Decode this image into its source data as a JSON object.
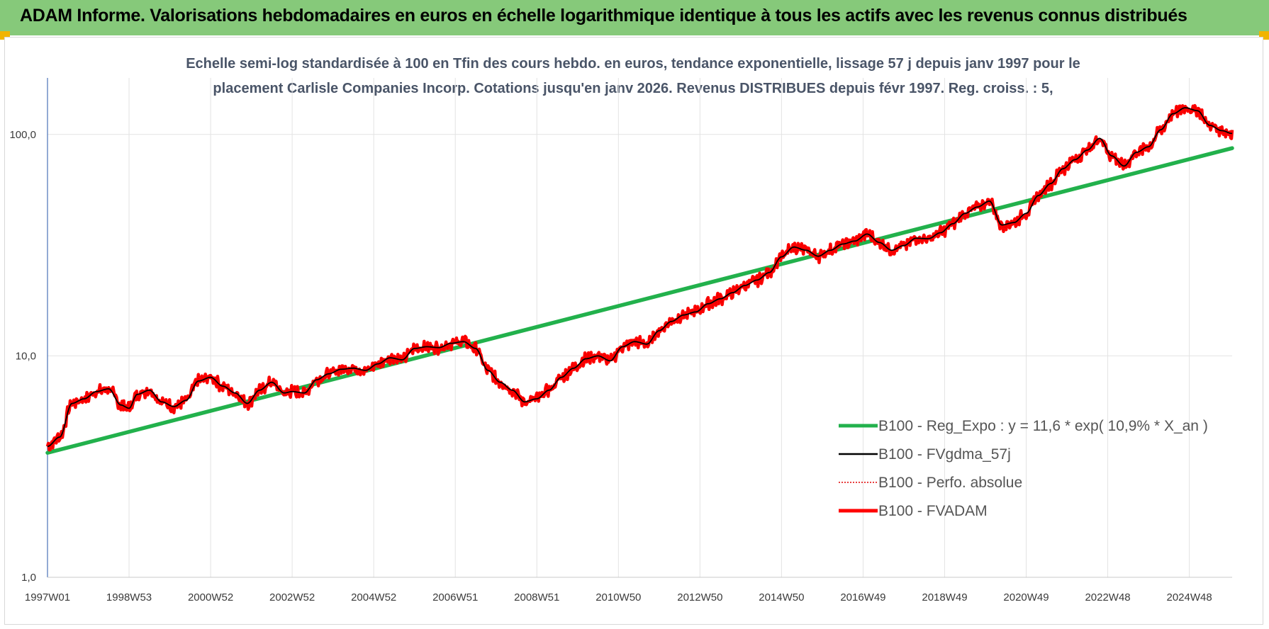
{
  "header": {
    "title": "ADAM Informe. Valorisations hebdomadaires en euros en échelle logarithmique identique à tous les actifs avec les revenus connus distribués"
  },
  "colors": {
    "banner": "#86c97a",
    "regression": "#22b14c",
    "smoothed": "#000000",
    "perf": "#e00000",
    "fvadam": "#ff0000",
    "accent": "#f0b400"
  },
  "chart_data": {
    "type": "line",
    "title_line1": "Echelle semi-log standardisée à 100 en Tfin des cours hebdo. en euros, tendance exponentielle, lissage 57 j depuis janv 1997 pour le",
    "title_line2": "placement Carlisle Companies Incorp. Cotations jusqu'en janv 2026. Revenus DISTRIBUES depuis févr 1997. Reg. croiss. : 5,",
    "y_scale": "log",
    "ylim": [
      1,
      180
    ],
    "xlim": [
      1997.0,
      2026.05
    ],
    "grid": true,
    "legend_position": "bottom-right",
    "y_ticks": [
      {
        "value": 1,
        "label": "1,0"
      },
      {
        "value": 10,
        "label": "10,0"
      },
      {
        "value": 100,
        "label": "100,0"
      }
    ],
    "x_ticks": [
      {
        "value": 1997.0,
        "label": "1997W01"
      },
      {
        "value": 1999.0,
        "label": "1998W53"
      },
      {
        "value": 2001.0,
        "label": "2000W52"
      },
      {
        "value": 2003.0,
        "label": "2002W52"
      },
      {
        "value": 2005.0,
        "label": "2004W52"
      },
      {
        "value": 2007.0,
        "label": "2006W51"
      },
      {
        "value": 2009.0,
        "label": "2008W51"
      },
      {
        "value": 2011.0,
        "label": "2010W50"
      },
      {
        "value": 2013.0,
        "label": "2012W50"
      },
      {
        "value": 2015.0,
        "label": "2014W50"
      },
      {
        "value": 2017.0,
        "label": "2016W49"
      },
      {
        "value": 2019.0,
        "label": "2018W49"
      },
      {
        "value": 2021.0,
        "label": "2020W49"
      },
      {
        "value": 2023.0,
        "label": "2022W48"
      },
      {
        "value": 2025.0,
        "label": "2024W48"
      }
    ],
    "series": [
      {
        "name": "B100 - Reg_Expo : y = 11,6 * exp( 10,9% *  X_an )",
        "style": "regression",
        "x": [
          1997.0,
          2026.05
        ],
        "values": [
          3.65,
          86.7
        ]
      },
      {
        "name": "B100 - FVgdma_57j",
        "style": "smoothed",
        "x": [
          1997.0,
          1997.3,
          1997.6,
          1997.9,
          1998.2,
          1998.5,
          1998.8,
          1999.0,
          1999.2,
          1999.5,
          1999.8,
          2000.1,
          2000.4,
          2000.7,
          2001.0,
          2001.3,
          2001.6,
          2001.9,
          2002.2,
          2002.5,
          2002.8,
          2003.0,
          2003.3,
          2003.6,
          2003.9,
          2004.2,
          2004.5,
          2004.8,
          2005.1,
          2005.4,
          2005.7,
          2006.0,
          2006.3,
          2006.6,
          2006.9,
          2007.2,
          2007.5,
          2007.8,
          2008.1,
          2008.4,
          2008.7,
          2009.0,
          2009.3,
          2009.6,
          2009.9,
          2010.2,
          2010.5,
          2010.8,
          2011.1,
          2011.4,
          2011.7,
          2012.0,
          2012.3,
          2012.6,
          2012.9,
          2013.2,
          2013.5,
          2013.8,
          2014.1,
          2014.4,
          2014.7,
          2015.0,
          2015.3,
          2015.6,
          2015.9,
          2016.2,
          2016.5,
          2016.8,
          2017.1,
          2017.4,
          2017.7,
          2018.0,
          2018.3,
          2018.6,
          2018.9,
          2019.2,
          2019.5,
          2019.8,
          2020.1,
          2020.4,
          2020.7,
          2021.0,
          2021.3,
          2021.6,
          2021.9,
          2022.2,
          2022.5,
          2022.8,
          2023.1,
          2023.4,
          2023.7,
          2024.0,
          2024.3,
          2024.6,
          2024.9,
          2025.2,
          2025.5,
          2025.8,
          2026.05
        ],
        "values": [
          3.9,
          4.3,
          6.1,
          6.4,
          6.9,
          7.1,
          6.0,
          5.8,
          6.7,
          7.0,
          6.2,
          5.9,
          6.3,
          7.7,
          8.0,
          7.3,
          6.8,
          6.1,
          7.0,
          7.6,
          6.8,
          6.9,
          6.8,
          7.8,
          8.3,
          8.7,
          8.8,
          8.6,
          9.2,
          9.8,
          9.6,
          10.8,
          11.0,
          10.9,
          11.4,
          11.6,
          10.8,
          8.6,
          7.6,
          7.0,
          6.2,
          6.4,
          7.0,
          8.0,
          8.8,
          9.7,
          10.0,
          9.5,
          11.0,
          11.6,
          11.3,
          13.0,
          14.3,
          15.3,
          15.8,
          17.2,
          18.1,
          19.3,
          20.8,
          22.0,
          23.8,
          28.0,
          31.0,
          30.0,
          28.2,
          30.0,
          32.0,
          33.0,
          35.5,
          32.5,
          30.0,
          31.5,
          34.0,
          33.8,
          36.0,
          39.5,
          44.0,
          47.0,
          50.0,
          39.0,
          40.0,
          44.0,
          53.0,
          60.0,
          70.0,
          77.0,
          85.0,
          96.0,
          80.0,
          72.0,
          83.0,
          88.0,
          105.0,
          124.0,
          132.0,
          128.0,
          110.0,
          104.0,
          101.0
        ]
      },
      {
        "name": "B100 - Perfo. absolue",
        "style": "perf"
      },
      {
        "name": "B100 - FVADAM",
        "style": "fvadam"
      }
    ]
  }
}
